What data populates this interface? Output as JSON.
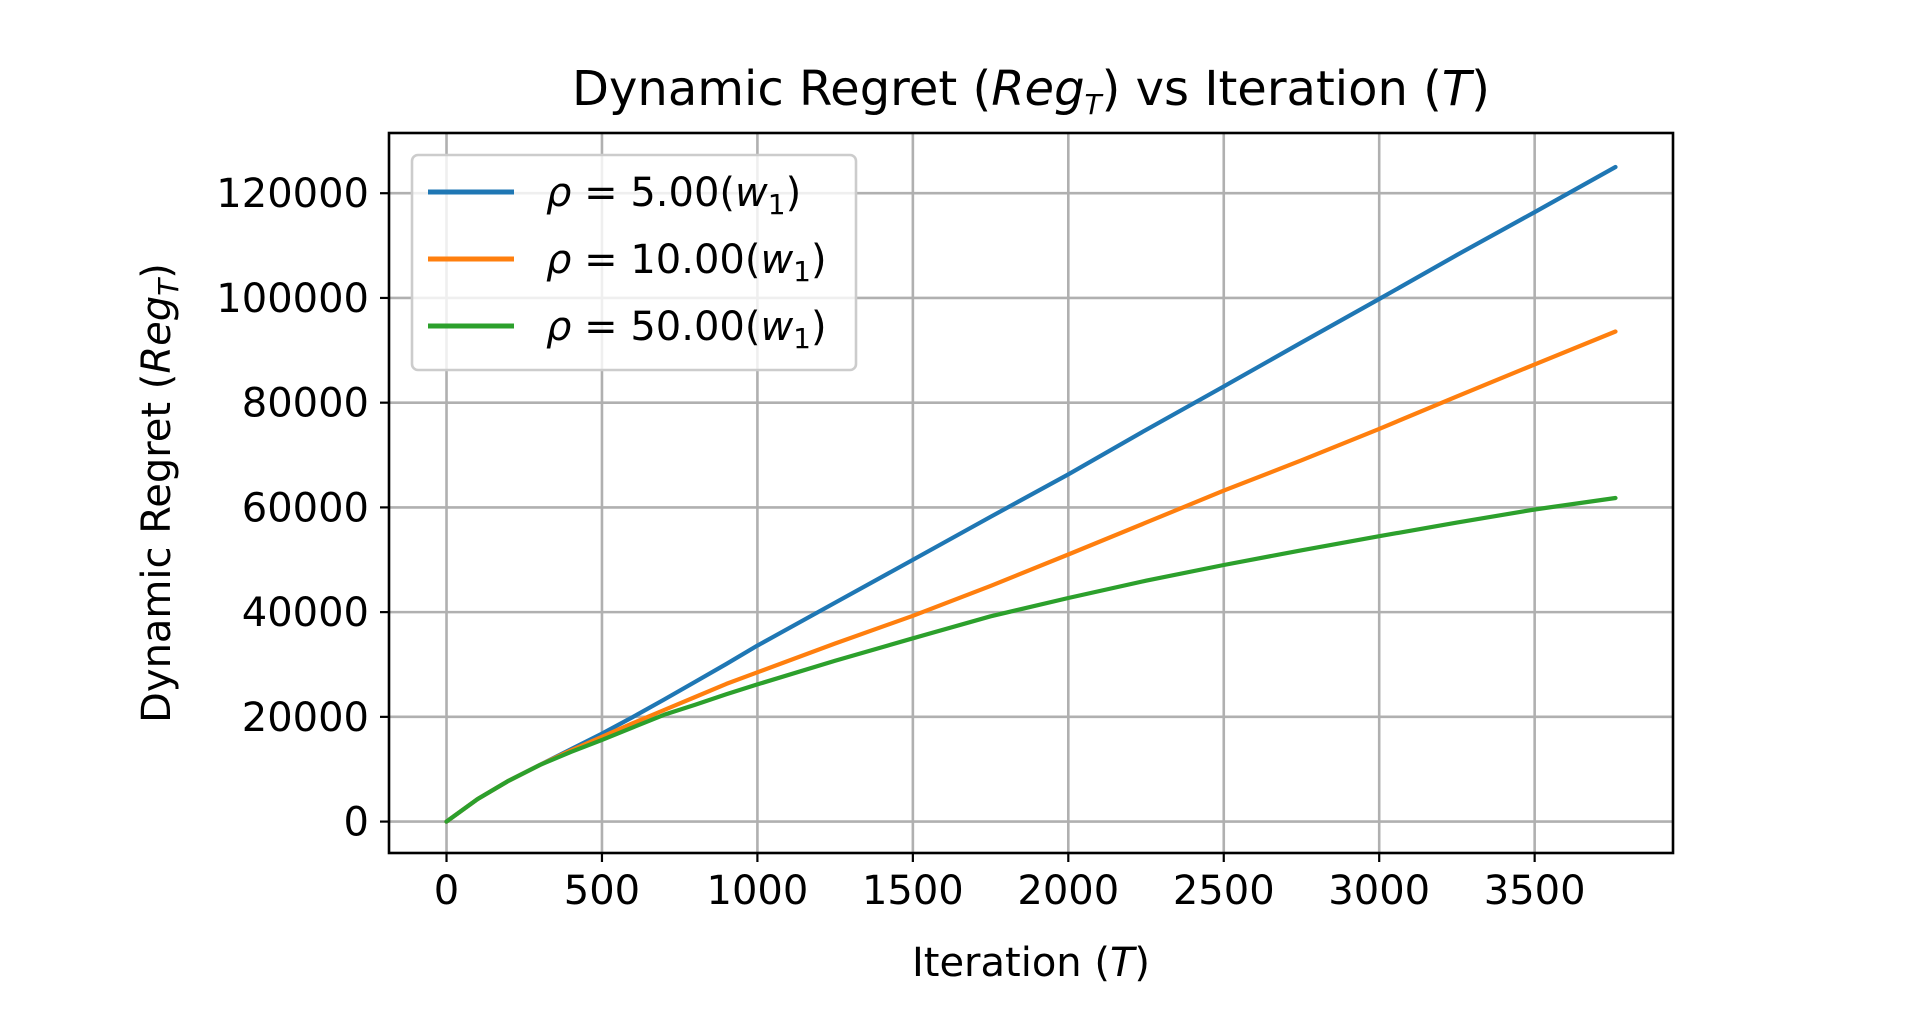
{
  "chart_data": {
    "type": "line",
    "title": {
      "pre": "Dynamic Regret (",
      "var": "Reg",
      "sub": "T",
      "mid": ") vs Iteration (",
      "var2": "T",
      "post": ")"
    },
    "xlabel": {
      "pre": "Iteration (",
      "var": "T",
      "post": ")"
    },
    "ylabel": {
      "pre": "Dynamic Regret (",
      "var": "Reg",
      "sub": "T",
      "post": ")"
    },
    "xlim": [
      -185,
      3945
    ],
    "ylim": [
      -6000,
      131500
    ],
    "xticks": [
      0,
      500,
      1000,
      1500,
      2000,
      2500,
      3000,
      3500
    ],
    "xtick_labels": [
      "0",
      "500",
      "1000",
      "1500",
      "2000",
      "2500",
      "3000",
      "3500"
    ],
    "yticks": [
      0,
      20000,
      40000,
      60000,
      80000,
      100000,
      120000
    ],
    "ytick_labels": [
      "0",
      "20000",
      "40000",
      "60000",
      "80000",
      "100000",
      "120000"
    ],
    "grid": true,
    "legend_position": "upper-left",
    "x": [
      0,
      100,
      200,
      300,
      400,
      500,
      600,
      700,
      800,
      900,
      1000,
      1250,
      1500,
      1750,
      2000,
      2250,
      2500,
      2750,
      3000,
      3250,
      3500,
      3760
    ],
    "series": [
      {
        "name": {
          "var": "ρ",
          "text": " = 5.00(",
          "var2": "w",
          "sub": "1",
          "post": ")"
        },
        "color": "#1f77b4",
        "values": [
          0,
          4300,
          7800,
          10800,
          13800,
          16800,
          20000,
          23300,
          26700,
          30100,
          33600,
          41800,
          50000,
          58200,
          66300,
          74800,
          83100,
          91500,
          99800,
          108200,
          116400,
          125000
        ]
      },
      {
        "name": {
          "var": "ρ",
          "text": " = 10.00(",
          "var2": "w",
          "sub": "1",
          "post": ")"
        },
        "color": "#ff7f0e",
        "values": [
          0,
          4300,
          7800,
          10800,
          13600,
          16200,
          18800,
          21300,
          23800,
          26300,
          28500,
          34000,
          39300,
          45000,
          51000,
          57100,
          63200,
          69000,
          75000,
          81200,
          87300,
          93600
        ]
      },
      {
        "name": {
          "var": "ρ",
          "text": " = 50.00(",
          "var2": "w",
          "sub": "1",
          "post": ")"
        },
        "color": "#2ca02c",
        "values": [
          0,
          4300,
          7800,
          10800,
          13300,
          15600,
          18000,
          20400,
          22300,
          24300,
          26200,
          30700,
          35000,
          39200,
          42700,
          46000,
          49000,
          51800,
          54500,
          57100,
          59600,
          61800
        ]
      }
    ]
  }
}
